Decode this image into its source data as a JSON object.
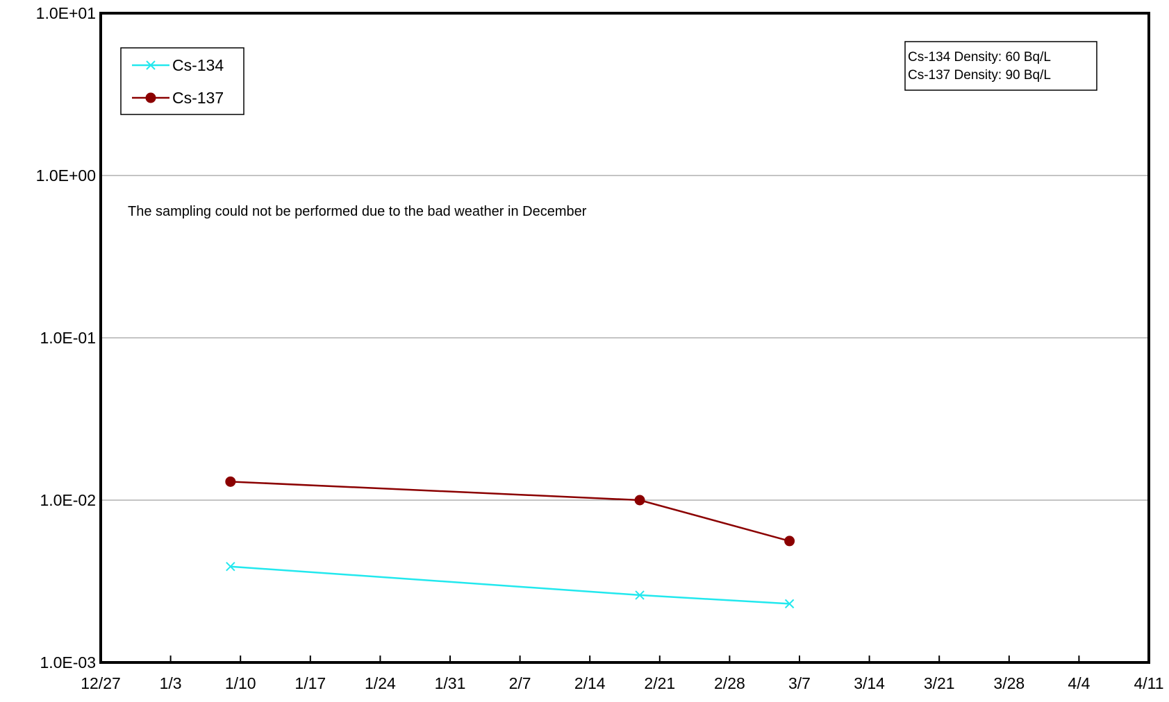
{
  "chart_data": {
    "type": "line",
    "yscale": "log",
    "ylim": [
      0.001,
      10
    ],
    "y_ticks": [
      "1.0E-03",
      "1.0E-02",
      "1.0E-01",
      "1.0E+00",
      "1.0E+01"
    ],
    "x_ticks": [
      "12/27",
      "1/3",
      "1/10",
      "1/17",
      "1/24",
      "1/31",
      "2/7",
      "2/14",
      "2/21",
      "2/28",
      "3/7",
      "3/14",
      "3/21",
      "3/28",
      "4/4",
      "4/11"
    ],
    "xlim": [
      "12/27",
      "4/11"
    ],
    "grid": "horizontal",
    "legend_position": "top-left",
    "series": [
      {
        "name": "Cs-134",
        "color": "#22e8ee",
        "marker": "x",
        "x": [
          "1/9",
          "2/19",
          "3/6"
        ],
        "values": [
          0.0039,
          0.0026,
          0.0023
        ]
      },
      {
        "name": "Cs-137",
        "color": "#8b0000",
        "marker": "circle",
        "x": [
          "1/9",
          "2/19",
          "3/6"
        ],
        "values": [
          0.013,
          0.01,
          0.0056
        ]
      }
    ],
    "annotations": {
      "note": "The sampling could not be performed due to the bad weather in December",
      "density_lines": [
        "Cs-134 Density: 60 Bq/L",
        "Cs-137 Density: 90 Bq/L"
      ]
    }
  }
}
